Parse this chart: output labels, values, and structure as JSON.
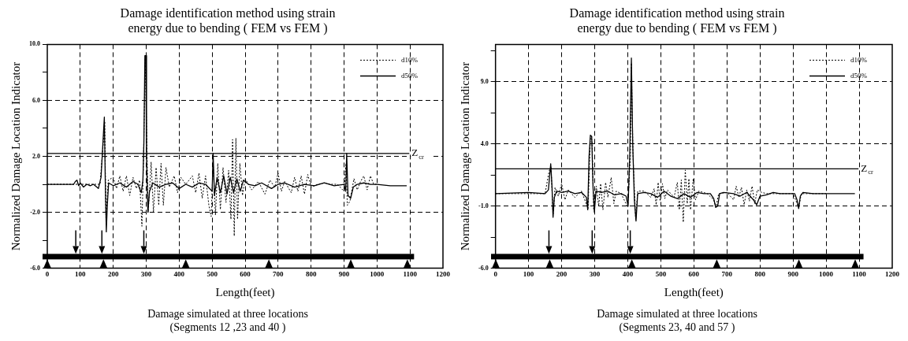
{
  "chart_data": [
    {
      "type": "line",
      "title": "Damage identification method using strain energy due to bending ( FEM vs FEM )",
      "xlabel": "Length(feet)",
      "ylabel": "Normalized Damage Location Indicator",
      "annotations": [
        "Damage simulated at three locations",
        "(Segments 12 ,23 and 40 )"
      ],
      "xlim": [
        0,
        1200
      ],
      "xticks": [
        0,
        100,
        200,
        300,
        400,
        500,
        600,
        700,
        800,
        900,
        1000,
        1100,
        1200
      ],
      "ylim": [
        -6,
        10
      ],
      "yticks": [
        {
          "value": -6,
          "label": "-6.0"
        },
        {
          "value": -4,
          "label": null
        },
        {
          "value": -2,
          "label": "-2.0"
        },
        {
          "value": 0,
          "label": null
        },
        {
          "value": 2,
          "label": "2.0"
        },
        {
          "value": 4,
          "label": null
        },
        {
          "value": 6,
          "label": "6.0"
        },
        {
          "value": 8,
          "label": null
        },
        {
          "value": 10,
          "label": "10.0"
        }
      ],
      "grid": true,
      "legend": "top right",
      "marker": "none",
      "ref_lines": [
        {
          "axis": "y",
          "value": 2.2,
          "label": "Z$_{cr}$",
          "color": "#000000"
        }
      ],
      "series": [
        {
          "name": "d10%",
          "color": "#000000",
          "line_style": "dotted",
          "x": [
            0,
            100,
            160,
            170,
            174,
            178,
            185,
            200,
            210,
            220,
            230,
            240,
            250,
            260,
            270,
            280,
            287,
            292,
            297,
            302,
            306,
            315,
            322,
            330,
            338,
            345,
            352,
            360,
            370,
            385,
            395,
            405,
            420,
            440,
            450,
            460,
            470,
            480,
            490,
            497,
            503,
            510,
            517,
            525,
            533,
            542,
            550,
            557,
            562,
            567,
            572,
            577,
            584,
            592,
            600,
            620,
            640,
            660,
            675,
            690,
            700,
            710,
            720,
            740,
            750,
            760,
            770,
            780,
            790,
            800,
            820,
            840,
            860,
            880,
            900,
            906,
            910,
            918,
            930,
            940,
            950,
            960,
            970,
            980,
            990,
            1000
          ],
          "values": [
            0,
            0,
            0,
            3.0,
            4.5,
            -2.5,
            0.3,
            0.5,
            -0.3,
            0.6,
            -0.5,
            0.6,
            -0.8,
            0.5,
            -0.3,
            0.3,
            -3.0,
            2,
            9.0,
            3,
            -2.0,
            1.6,
            -2.0,
            1.2,
            -1.5,
            1.5,
            -1.5,
            1.2,
            -0.2,
            0.6,
            -0.6,
            0.5,
            0,
            0.6,
            -0.6,
            0.8,
            -1.0,
            0.6,
            -1.5,
            -2.3,
            1.5,
            -2.2,
            1.5,
            -1.8,
            1.2,
            -1.3,
            1.0,
            -2.5,
            3.2,
            -3.7,
            3.3,
            -2.5,
            1.5,
            -0.8,
            0.4,
            -0.4,
            0.2,
            -0.7,
            0.3,
            -0.2,
            0.8,
            -0.5,
            0.2,
            -0.6,
            0.5,
            -0.5,
            0.6,
            -0.7,
            0.7,
            -0.2,
            0,
            0.1,
            0,
            0,
            -0.5,
            1.5,
            -1.5,
            -1.2,
            0.4,
            -0.4,
            0.2,
            0.6,
            -0.4,
            0.6,
            0,
            0
          ]
        },
        {
          "name": "d50%",
          "color": "#000000",
          "line_style": "solid",
          "x": [
            0,
            80,
            85,
            90,
            95,
            100,
            110,
            120,
            130,
            140,
            155,
            163,
            170,
            173,
            176,
            179,
            182,
            186,
            200,
            220,
            240,
            260,
            275,
            285,
            290,
            293,
            296,
            299,
            301,
            305,
            310,
            320,
            340,
            360,
            380,
            400,
            420,
            440,
            460,
            480,
            500,
            503,
            507,
            515,
            525,
            535,
            545,
            555,
            565,
            575,
            585,
            595,
            610,
            630,
            650,
            680,
            700,
            720,
            750,
            780,
            810,
            840,
            870,
            900,
            905,
            908,
            912,
            920,
            928,
            940,
            960,
            980,
            1000,
            1040,
            1090
          ],
          "values": [
            0,
            0,
            0.2,
            0.3,
            -0.1,
            0.1,
            -0.2,
            0,
            -0.1,
            0,
            -0.3,
            0.5,
            3.5,
            4.8,
            0,
            -3.4,
            -1.5,
            0.1,
            -0.1,
            0.1,
            -0.2,
            0.2,
            0,
            -0.6,
            0.3,
            3,
            9.2,
            9.2,
            2,
            -2.0,
            -0.5,
            0.1,
            -0.2,
            0,
            0.1,
            -0.3,
            0,
            -0.2,
            0.1,
            0,
            -0.5,
            2.2,
            -0.8,
            0.5,
            -0.6,
            0.6,
            -0.7,
            0.5,
            -0.6,
            0.4,
            -0.5,
            0.3,
            0,
            -0.1,
            0.1,
            -0.3,
            0,
            0.1,
            -0.2,
            0,
            -0.1,
            0.1,
            -0.1,
            0,
            -0.5,
            2.2,
            -0.8,
            -1.0,
            -0.2,
            0,
            0.1,
            0,
            0,
            -0.1,
            -0.1
          ]
        }
      ]
    },
    {
      "type": "line",
      "title": "Damage identification method using strain energy due to bending ( FEM vs FEM )",
      "xlabel": "Length(feet)",
      "ylabel": "Normalized Damage Location Indicator",
      "annotations": [
        "Damage simulated at three locations",
        "(Segments 23, 40 and 57 )"
      ],
      "xlim": [
        0,
        1200
      ],
      "xticks": [
        0,
        100,
        200,
        300,
        400,
        500,
        600,
        700,
        800,
        900,
        1000,
        1100,
        1200
      ],
      "ylim": [
        -6,
        12
      ],
      "yticks": [
        {
          "value": -6,
          "label": "-6.0"
        },
        {
          "value": -3.5,
          "label": null
        },
        {
          "value": -1,
          "label": "-1.0"
        },
        {
          "value": 1.5,
          "label": null
        },
        {
          "value": 4,
          "label": "4.0"
        },
        {
          "value": 6.5,
          "label": null
        },
        {
          "value": 9,
          "label": "9.0"
        },
        {
          "value": 11.5,
          "label": null
        }
      ],
      "grid": true,
      "legend": "top right",
      "marker": "none",
      "ref_lines": [
        {
          "axis": "y",
          "value": 2.0,
          "label": "Z$_{cr}$",
          "color": "#000000"
        }
      ],
      "series": [
        {
          "name": "d10%",
          "color": "#000000",
          "line_style": "dotted",
          "x": [
            0,
            150,
            162,
            168,
            174,
            180,
            190,
            200,
            210,
            220,
            240,
            260,
            280,
            287,
            292,
            297,
            305,
            312,
            318,
            325,
            333,
            340,
            350,
            358,
            365,
            380,
            400,
            408,
            411,
            416,
            424,
            430,
            450,
            470,
            480,
            486,
            492,
            498,
            505,
            512,
            520,
            540,
            550,
            556,
            562,
            568,
            574,
            580,
            585,
            590,
            598,
            605,
            615,
            640,
            660,
            667,
            675,
            700,
            720,
            728,
            736,
            744,
            752,
            760,
            768,
            776,
            784,
            792,
            805,
            820,
            900,
            917,
            925,
            950,
            1000
          ],
          "values": [
            0,
            0,
            1.8,
            2.2,
            -1.8,
            0.5,
            -0.2,
            0.8,
            -0.5,
            0.3,
            -0.3,
            0.2,
            -1.2,
            4.5,
            4.3,
            -1.3,
            0.6,
            -1.0,
            0.8,
            -1.3,
            0.9,
            -0.3,
            1.3,
            -0.8,
            0.2,
            0,
            -1.1,
            3,
            10.5,
            3,
            -2.1,
            0.2,
            0.2,
            -0.3,
            0.4,
            -0.9,
            0.9,
            -0.6,
            0.8,
            -0.4,
            0.3,
            -0.3,
            0.9,
            -1.3,
            1.1,
            -2.3,
            1.9,
            -0.8,
            1.2,
            -1.3,
            1.2,
            -0.5,
            0.2,
            0,
            -0.5,
            -1.1,
            0,
            0.1,
            -0.5,
            0.6,
            -0.3,
            0.5,
            -0.9,
            0.3,
            -0.6,
            0.6,
            -0.8,
            0.3,
            0.1,
            0,
            0,
            -1.1,
            0,
            0,
            0
          ]
        },
        {
          "name": "d50%",
          "color": "#000000",
          "line_style": "solid",
          "x": [
            0,
            100,
            150,
            160,
            167,
            171,
            174,
            178,
            185,
            200,
            220,
            240,
            260,
            275,
            279,
            283,
            287,
            291,
            295,
            299,
            304,
            320,
            340,
            360,
            380,
            395,
            401,
            406,
            411,
            415,
            420,
            425,
            430,
            450,
            470,
            490,
            510,
            530,
            550,
            570,
            590,
            610,
            630,
            650,
            660,
            666,
            672,
            678,
            690,
            720,
            740,
            760,
            780,
            790,
            800,
            820,
            840,
            860,
            890,
            905,
            912,
            917,
            922,
            930,
            960,
            1000,
            1050,
            1087
          ],
          "values": [
            0,
            0.1,
            0,
            0.3,
            2.4,
            0.5,
            -1.9,
            -0.3,
            0.2,
            0.1,
            0.2,
            0,
            0.1,
            -0.3,
            -1.3,
            3,
            4.7,
            4.6,
            0.5,
            -1.5,
            0.2,
            0.1,
            0.2,
            -0.1,
            0,
            -0.2,
            -1.0,
            3,
            10.9,
            4,
            -0.5,
            -2.2,
            0,
            0.1,
            0,
            -0.3,
            0.2,
            -0.2,
            -0.4,
            0,
            -0.3,
            0.1,
            0,
            0,
            -0.4,
            -1.1,
            -1.0,
            0,
            0.1,
            0,
            -0.2,
            0.1,
            -0.5,
            -0.9,
            -0.2,
            -0.1,
            0.1,
            0,
            0,
            0,
            -0.5,
            -1.2,
            -0.2,
            0.1,
            0,
            0,
            0,
            0
          ]
        }
      ]
    }
  ]
}
